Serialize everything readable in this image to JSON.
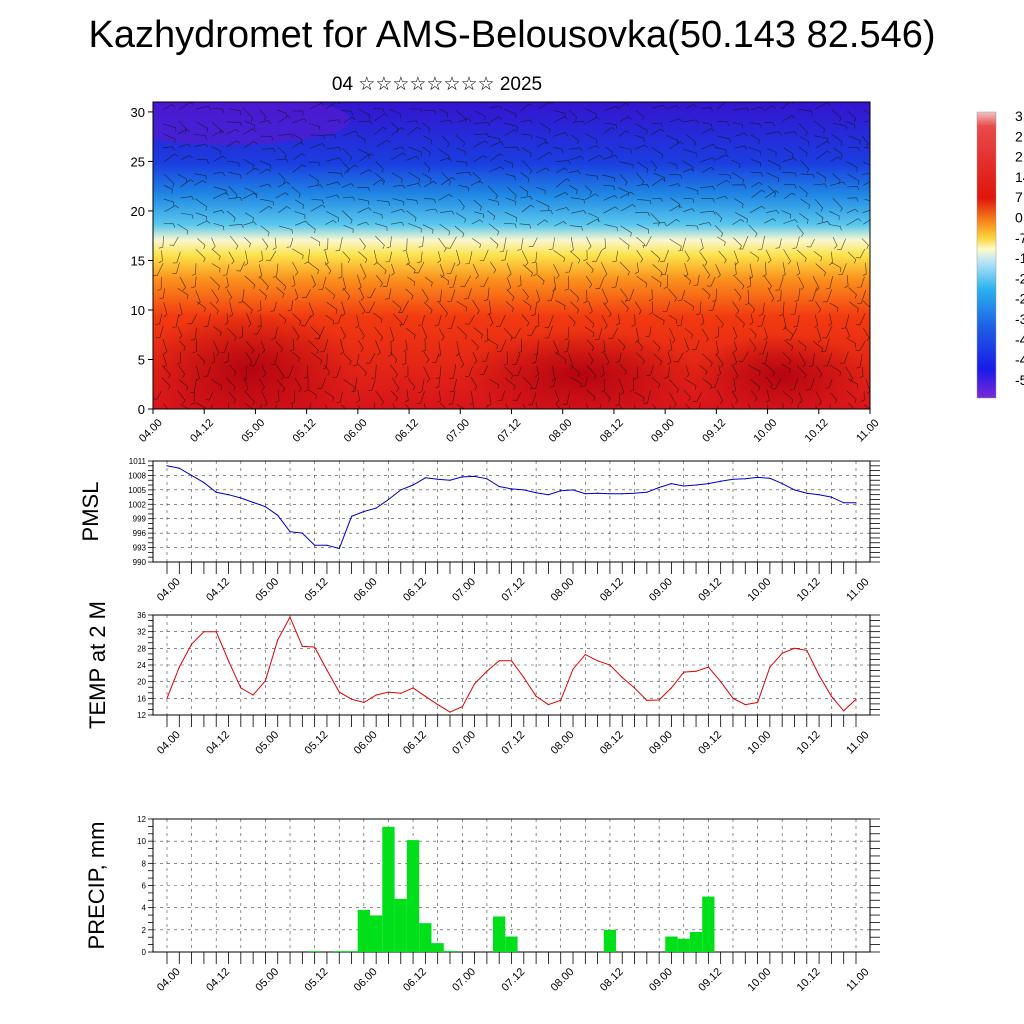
{
  "header": {
    "title": "Kazhydromet for AMS-Belousovka(50.143 82.546)",
    "subtitle": "04 ☆☆☆☆☆☆☆☆ 2025"
  },
  "chart_data": [
    {
      "type": "heatmap",
      "title": "",
      "x_ticks": [
        "04.00",
        "04.12",
        "05.00",
        "05.12",
        "06.00",
        "06.12",
        "07.00",
        "07.12",
        "08.00",
        "08.12",
        "09.00",
        "09.12",
        "10.00",
        "10.12",
        "11.00"
      ],
      "y_ticks": [
        "0",
        "5",
        "10",
        "15",
        "20",
        "25",
        "30"
      ],
      "ylim": [
        0,
        31
      ],
      "colorbar_labels": [
        "3",
        "2",
        "2",
        "14",
        "7",
        "0",
        "-7",
        "-1",
        "-2",
        "-2",
        "-3",
        "-4",
        "-4",
        "-5"
      ],
      "colors": {
        "cold_top": "#2b0fd0",
        "cool": "#1aa2e8",
        "mid": "#fce24a",
        "warm": "#fb8f1c",
        "hot": "#e2140c"
      }
    },
    {
      "type": "line",
      "ylabel": "PMSL",
      "x_ticks": [
        "04.00",
        "04.12",
        "05.00",
        "05.12",
        "06.00",
        "06.12",
        "07.00",
        "07.12",
        "08.00",
        "08.12",
        "09.00",
        "09.12",
        "10.00",
        "10.12",
        "11.00"
      ],
      "y_ticks": [
        "990",
        "993",
        "996",
        "999",
        "1002",
        "1005",
        "1008",
        "1011"
      ],
      "ylim": [
        990,
        1011
      ],
      "color": "#0000cc",
      "values": [
        1010,
        1009.5,
        1008,
        1006.5,
        1004.5,
        1004,
        1003.3,
        1002.4,
        1001.5,
        999.7,
        996.3,
        996,
        993.5,
        993.5,
        992.8,
        999.5,
        1000.5,
        1001.2,
        1003,
        1005,
        1006,
        1007.5,
        1007.2,
        1007,
        1007.7,
        1007.8,
        1007.3,
        1005.7,
        1005.2,
        1005,
        1004.4,
        1004,
        1004.8,
        1005,
        1004.2,
        1004.3,
        1004.2,
        1004.2,
        1004.3,
        1004.5,
        1005.5,
        1006.3,
        1005.8,
        1006,
        1006.3,
        1006.8,
        1007.2,
        1007.3,
        1007.6,
        1007.4,
        1006.3,
        1005,
        1004.3,
        1004,
        1003.5,
        1002.3,
        1002.3
      ]
    },
    {
      "type": "line",
      "ylabel": "TEMP at 2 M",
      "x_ticks": [
        "04.00",
        "04.12",
        "05.00",
        "05.12",
        "06.00",
        "06.12",
        "07.00",
        "07.12",
        "08.00",
        "08.12",
        "09.00",
        "09.12",
        "10.00",
        "10.12",
        "11.00"
      ],
      "y_ticks": [
        "12",
        "16",
        "20",
        "24",
        "28",
        "32",
        "36"
      ],
      "ylim": [
        12,
        36
      ],
      "color": "#e00000",
      "values": [
        16,
        23.5,
        29,
        32,
        32,
        25,
        18.5,
        16.8,
        20.2,
        30,
        35.5,
        28.5,
        28.3,
        22.8,
        17.5,
        15.8,
        15,
        16.8,
        17.5,
        17.2,
        18.5,
        16.5,
        14.5,
        12.7,
        14,
        19.5,
        22.5,
        25,
        25,
        21,
        16.5,
        14.5,
        15.5,
        23,
        26.5,
        25,
        24,
        21,
        18.5,
        15.5,
        15.6,
        18.5,
        22.3,
        22.5,
        23.5,
        20,
        16,
        14.5,
        15,
        23.5,
        26.8,
        28,
        27.5,
        21.5,
        16.5,
        13,
        15.8
      ]
    },
    {
      "type": "bar",
      "ylabel": "PRECIP, mm",
      "x_ticks": [
        "04.00",
        "04.12",
        "05.00",
        "05.12",
        "06.00",
        "06.12",
        "07.00",
        "07.12",
        "08.00",
        "08.12",
        "09.00",
        "09.12",
        "10.00",
        "10.12",
        "11.00"
      ],
      "y_ticks": [
        "0",
        "2",
        "4",
        "6",
        "8",
        "10",
        "12"
      ],
      "ylim": [
        0,
        12
      ],
      "color": "#00e01a",
      "values": [
        0,
        0,
        0,
        0,
        0,
        0,
        0,
        0,
        0,
        0,
        0,
        0,
        0.08,
        0,
        0.08,
        0.08,
        3.8,
        3.3,
        11.3,
        4.8,
        10.1,
        2.6,
        0.8,
        0.1,
        0,
        0,
        0,
        3.2,
        1.4,
        0,
        0,
        0,
        0,
        0,
        0,
        0,
        2,
        0,
        0,
        0,
        0,
        1.4,
        1.2,
        1.8,
        5,
        0,
        0,
        0,
        0,
        0,
        0,
        0,
        0,
        0,
        0,
        0,
        0
      ]
    }
  ]
}
